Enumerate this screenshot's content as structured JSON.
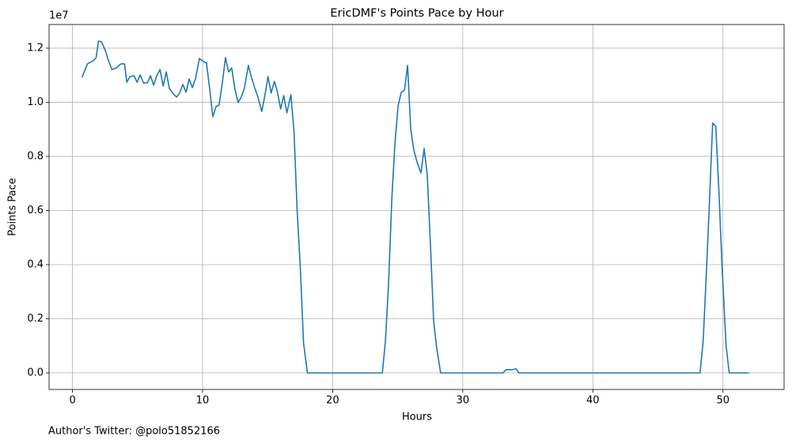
{
  "chart_data": {
    "type": "line",
    "title": "EricDMF's Points Pace by Hour",
    "x_label": "Hours",
    "y_label": "Points Pace",
    "y_offset_label": "1e7",
    "footnote": "Author's Twitter: @polo51852166",
    "grid": true,
    "xlim": [
      -1.8,
      54.7
    ],
    "ylim": [
      -613000,
      12874000
    ],
    "xticks": [
      0,
      10,
      20,
      30,
      40,
      50
    ],
    "yticks": [
      {
        "value": 0,
        "label": "0.0"
      },
      {
        "value": 2000000,
        "label": "0.2"
      },
      {
        "value": 4000000,
        "label": "0.4"
      },
      {
        "value": 6000000,
        "label": "0.6"
      },
      {
        "value": 8000000,
        "label": "0.8"
      },
      {
        "value": 10000000,
        "label": "1.0"
      },
      {
        "value": 12000000,
        "label": "1.2"
      }
    ],
    "x": [
      0.73,
      1.15,
      1.58,
      1.82,
      2.0,
      2.24,
      2.55,
      2.73,
      3.03,
      3.39,
      3.64,
      3.76,
      4.0,
      4.18,
      4.42,
      4.73,
      4.97,
      5.21,
      5.45,
      5.76,
      6.0,
      6.24,
      6.48,
      6.73,
      6.97,
      7.21,
      7.45,
      7.7,
      8.0,
      8.24,
      8.48,
      8.73,
      8.97,
      9.21,
      9.45,
      9.76,
      10.0,
      10.3,
      10.55,
      10.79,
      11.03,
      11.27,
      11.52,
      11.76,
      12.0,
      12.24,
      12.48,
      12.73,
      12.97,
      13.21,
      13.52,
      13.76,
      14.0,
      14.24,
      14.55,
      14.79,
      15.03,
      15.27,
      15.52,
      15.76,
      16.0,
      16.24,
      16.48,
      16.79,
      17.03,
      17.27,
      17.52,
      17.76,
      18.06,
      23.82,
      24.06,
      24.3,
      24.55,
      24.79,
      25.03,
      25.27,
      25.52,
      25.76,
      26.0,
      26.24,
      26.48,
      26.79,
      27.03,
      27.27,
      27.52,
      27.76,
      28.0,
      28.3,
      33.09,
      33.33,
      33.58,
      33.82,
      34.1,
      34.3,
      48.24,
      48.48,
      48.73,
      48.97,
      49.21,
      49.45,
      49.7,
      49.94,
      50.24,
      50.48,
      52.0
    ],
    "series": [
      {
        "name": "Points Pace",
        "color": "#1f77b4",
        "values": [
          10920000,
          11420000,
          11530000,
          11650000,
          12260000,
          12230000,
          11880000,
          11590000,
          11210000,
          11270000,
          11390000,
          11420000,
          11420000,
          10740000,
          10950000,
          10980000,
          10740000,
          11010000,
          10720000,
          10720000,
          10980000,
          10630000,
          10980000,
          11210000,
          10600000,
          11120000,
          10510000,
          10340000,
          10190000,
          10340000,
          10660000,
          10370000,
          10860000,
          10540000,
          10860000,
          11620000,
          11530000,
          11450000,
          10480000,
          9460000,
          9840000,
          9900000,
          10720000,
          11650000,
          11120000,
          11270000,
          10510000,
          9990000,
          10190000,
          10510000,
          11360000,
          10920000,
          10540000,
          10220000,
          9660000,
          10250000,
          10950000,
          10340000,
          10770000,
          10370000,
          9750000,
          10250000,
          9610000,
          10280000,
          8910000,
          6010000,
          3830000,
          1110000,
          0,
          0,
          1200000,
          3330000,
          6450000,
          8500000,
          9870000,
          10370000,
          10450000,
          11360000,
          9020000,
          8230000,
          7800000,
          7390000,
          8290000,
          7330000,
          4700000,
          1930000,
          910000,
          0,
          0,
          120000,
          120000,
          120000,
          150000,
          0,
          0,
          1170000,
          3740000,
          6390000,
          9230000,
          9110000,
          6600000,
          3830000,
          1020000,
          0,
          0
        ]
      }
    ]
  }
}
